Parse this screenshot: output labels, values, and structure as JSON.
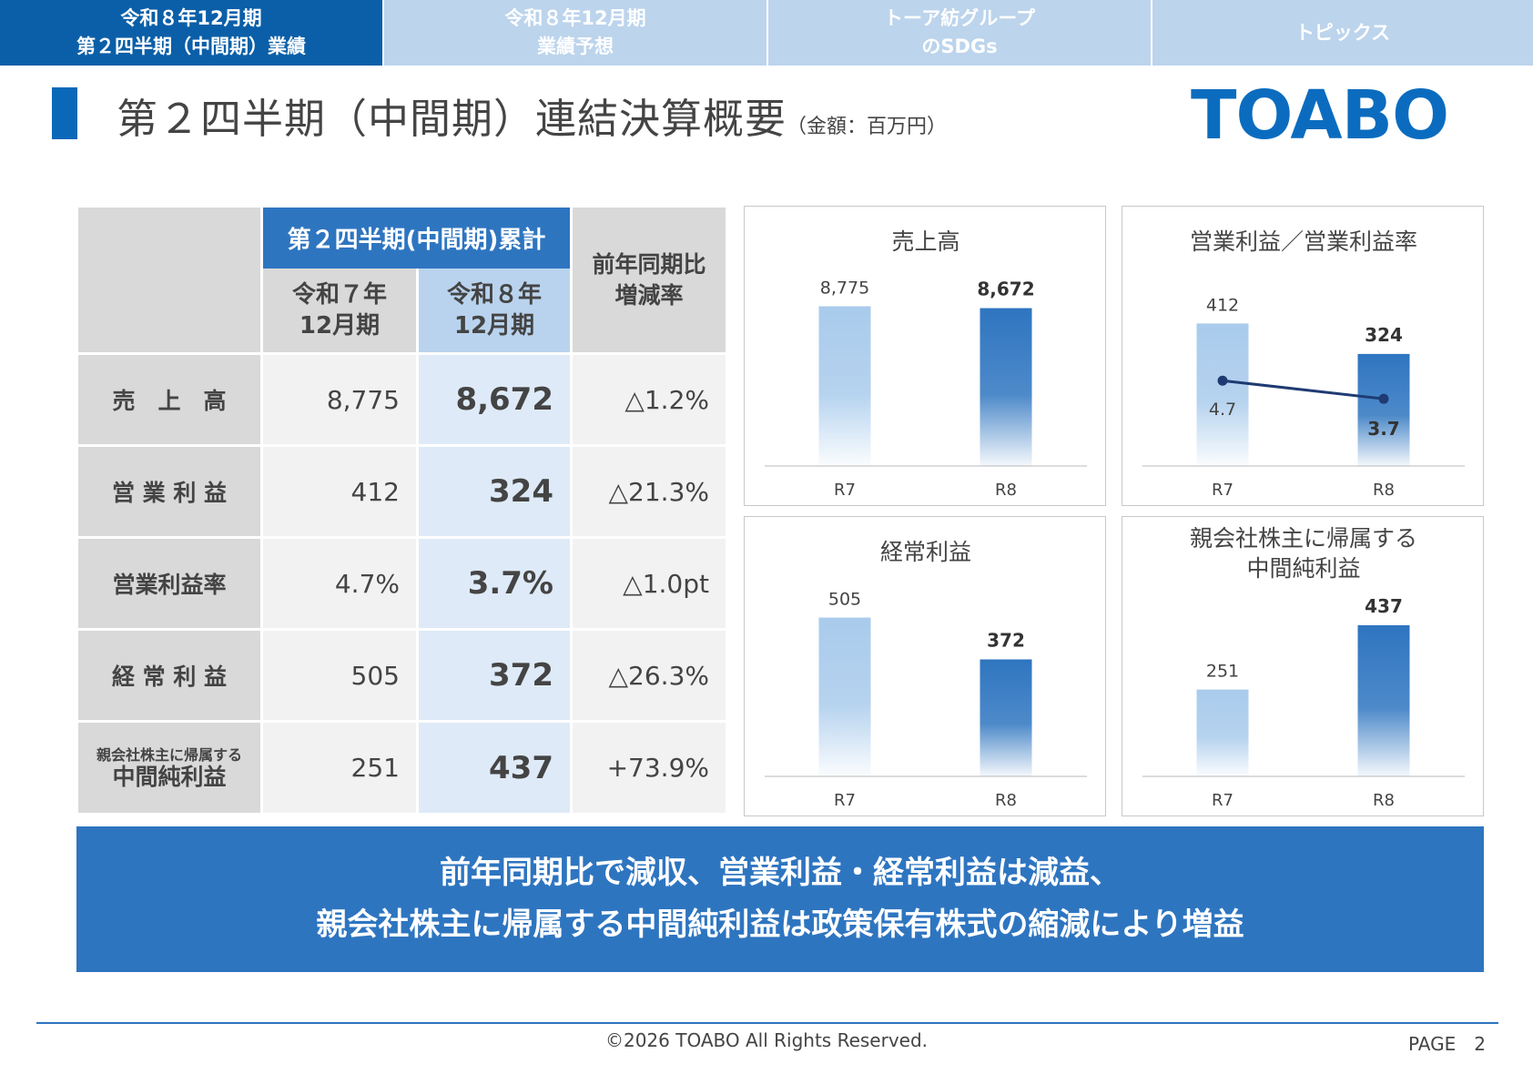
{
  "tabs": [
    {
      "label": "令和８年12月期\n第２四半期（中間期）業績",
      "active": true
    },
    {
      "label": "令和８年12月期\n業績予想",
      "active": false
    },
    {
      "label": "トーア紡グループ\nのSDGs",
      "active": false
    },
    {
      "label": "トピックス",
      "active": false
    }
  ],
  "header": {
    "title": "第２四半期（中間期）連結決算概要",
    "unit": "（金額：百万円）",
    "logo": "TOABO"
  },
  "table": {
    "group_header": "第２四半期(中間期)累計",
    "prev_header": "令和７年\n12月期",
    "curr_header": "令和８年\n12月期",
    "change_header": "前年同期比\n増減率",
    "rows": [
      {
        "label": "売　上　高",
        "prev": "8,775",
        "curr": "8,672",
        "change": "△1.2%"
      },
      {
        "label": "営 業 利 益",
        "prev": "412",
        "curr": "324",
        "change": "△21.3%"
      },
      {
        "label": "営業利益率",
        "prev": "4.7%",
        "curr": "3.7%",
        "change": "△1.0pt"
      },
      {
        "label": "経 常 利 益",
        "prev": "505",
        "curr": "372",
        "change": "△26.3%"
      },
      {
        "label_small": "親会社株主に帰属する",
        "label_big": "中間純利益",
        "prev": "251",
        "curr": "437",
        "change": "+73.9%"
      }
    ]
  },
  "chart_data": [
    {
      "type": "bar",
      "title": "売上高",
      "categories": [
        "R7",
        "R8"
      ],
      "values": [
        8775,
        8672
      ],
      "value_labels": [
        "8,775",
        "8,672"
      ],
      "ylim": [
        0,
        9500
      ]
    },
    {
      "type": "bar",
      "title": "営業利益／営業利益率",
      "categories": [
        "R7",
        "R8"
      ],
      "values": [
        412,
        324
      ],
      "value_labels": [
        "412",
        "324"
      ],
      "ylim": [
        0,
        500
      ],
      "line": {
        "values": [
          4.7,
          3.7
        ],
        "value_labels": [
          "4.7",
          "3.7"
        ],
        "ylim": [
          0,
          10
        ],
        "color": "#1f3b73"
      }
    },
    {
      "type": "bar",
      "title": "経常利益",
      "categories": [
        "R7",
        "R8"
      ],
      "values": [
        505,
        372
      ],
      "value_labels": [
        "505",
        "372"
      ],
      "ylim": [
        0,
        550
      ]
    },
    {
      "type": "bar",
      "title": "親会社株主に帰属する\n中間純利益",
      "categories": [
        "R7",
        "R8"
      ],
      "values": [
        251,
        437
      ],
      "value_labels": [
        "251",
        "437"
      ],
      "ylim": [
        0,
        500
      ]
    }
  ],
  "colors": {
    "prev_bar": "#a9cbec",
    "curr_bar": "#2e75c0",
    "accent": "#0b5fa8"
  },
  "summary": {
    "line1": "前年同期比で減収、営業利益・経常利益は減益、",
    "line2": "親会社株主に帰属する中間純利益は政策保有株式の縮減により増益"
  },
  "footer": {
    "copyright": "©2026 TOABO All Rights Reserved.",
    "page": "PAGE　2"
  }
}
